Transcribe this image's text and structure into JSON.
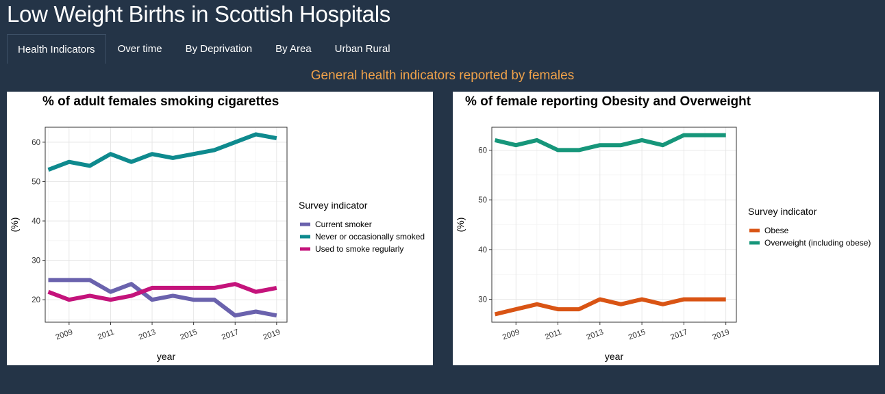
{
  "app": {
    "title": "Low Weight Births in Scottish Hospitals"
  },
  "tabs": [
    {
      "label": "Health Indicators",
      "active": true
    },
    {
      "label": "Over time",
      "active": false
    },
    {
      "label": "By Deprivation",
      "active": false
    },
    {
      "label": "By Area",
      "active": false
    },
    {
      "label": "Urban Rural",
      "active": false
    }
  ],
  "section": {
    "heading": "General health indicators reported by females"
  },
  "colors": {
    "page_background": "#243447",
    "heading_accent": "#f0a24a"
  },
  "chart_data": [
    {
      "type": "line",
      "title": "% of adult females smoking cigarettes",
      "xlabel": "year",
      "ylabel": "(%)",
      "x": [
        2008,
        2009,
        2010,
        2011,
        2012,
        2013,
        2014,
        2015,
        2016,
        2017,
        2018,
        2019
      ],
      "xticks": [
        2009,
        2011,
        2013,
        2015,
        2017,
        2019
      ],
      "yticks": [
        20,
        30,
        40,
        50,
        60
      ],
      "xlim": [
        2007.85,
        2019.5
      ],
      "ylim": [
        14.3,
        63.8
      ],
      "grid": true,
      "legend_position": "right",
      "legend_title": "Survey indicator",
      "series": [
        {
          "name": "Current smoker",
          "color": "#6a62ad",
          "values": [
            25,
            25,
            25,
            22,
            24,
            20,
            21,
            20,
            20,
            16,
            17,
            16
          ]
        },
        {
          "name": "Never or occasionally smoked",
          "color": "#0e8a8e",
          "values": [
            53,
            55,
            54,
            57,
            55,
            57,
            56,
            57,
            58,
            60,
            62,
            61
          ]
        },
        {
          "name": "Used to smoke regularly",
          "color": "#c4137b",
          "values": [
            22,
            20,
            21,
            20,
            21,
            23,
            23,
            23,
            23,
            24,
            22,
            23
          ]
        }
      ]
    },
    {
      "type": "line",
      "title": "% of female reporting Obesity and Overweight",
      "xlabel": "year",
      "ylabel": "(%)",
      "x": [
        2008,
        2009,
        2010,
        2011,
        2012,
        2013,
        2014,
        2015,
        2016,
        2017,
        2018,
        2019
      ],
      "xticks": [
        2009,
        2011,
        2013,
        2015,
        2017,
        2019
      ],
      "yticks": [
        30,
        40,
        50,
        60
      ],
      "xlim": [
        2007.85,
        2019.5
      ],
      "ylim": [
        25.4,
        64.6
      ],
      "grid": true,
      "legend_position": "right",
      "legend_title": "Survey indicator",
      "series": [
        {
          "name": "Obese",
          "color": "#d95414",
          "values": [
            27,
            28,
            29,
            28,
            28,
            30,
            29,
            30,
            29,
            30,
            30,
            30
          ]
        },
        {
          "name": "Overweight (including obese)",
          "color": "#16967a",
          "values": [
            62,
            61,
            62,
            60,
            60,
            61,
            61,
            62,
            61,
            63,
            63,
            63
          ]
        }
      ]
    }
  ]
}
